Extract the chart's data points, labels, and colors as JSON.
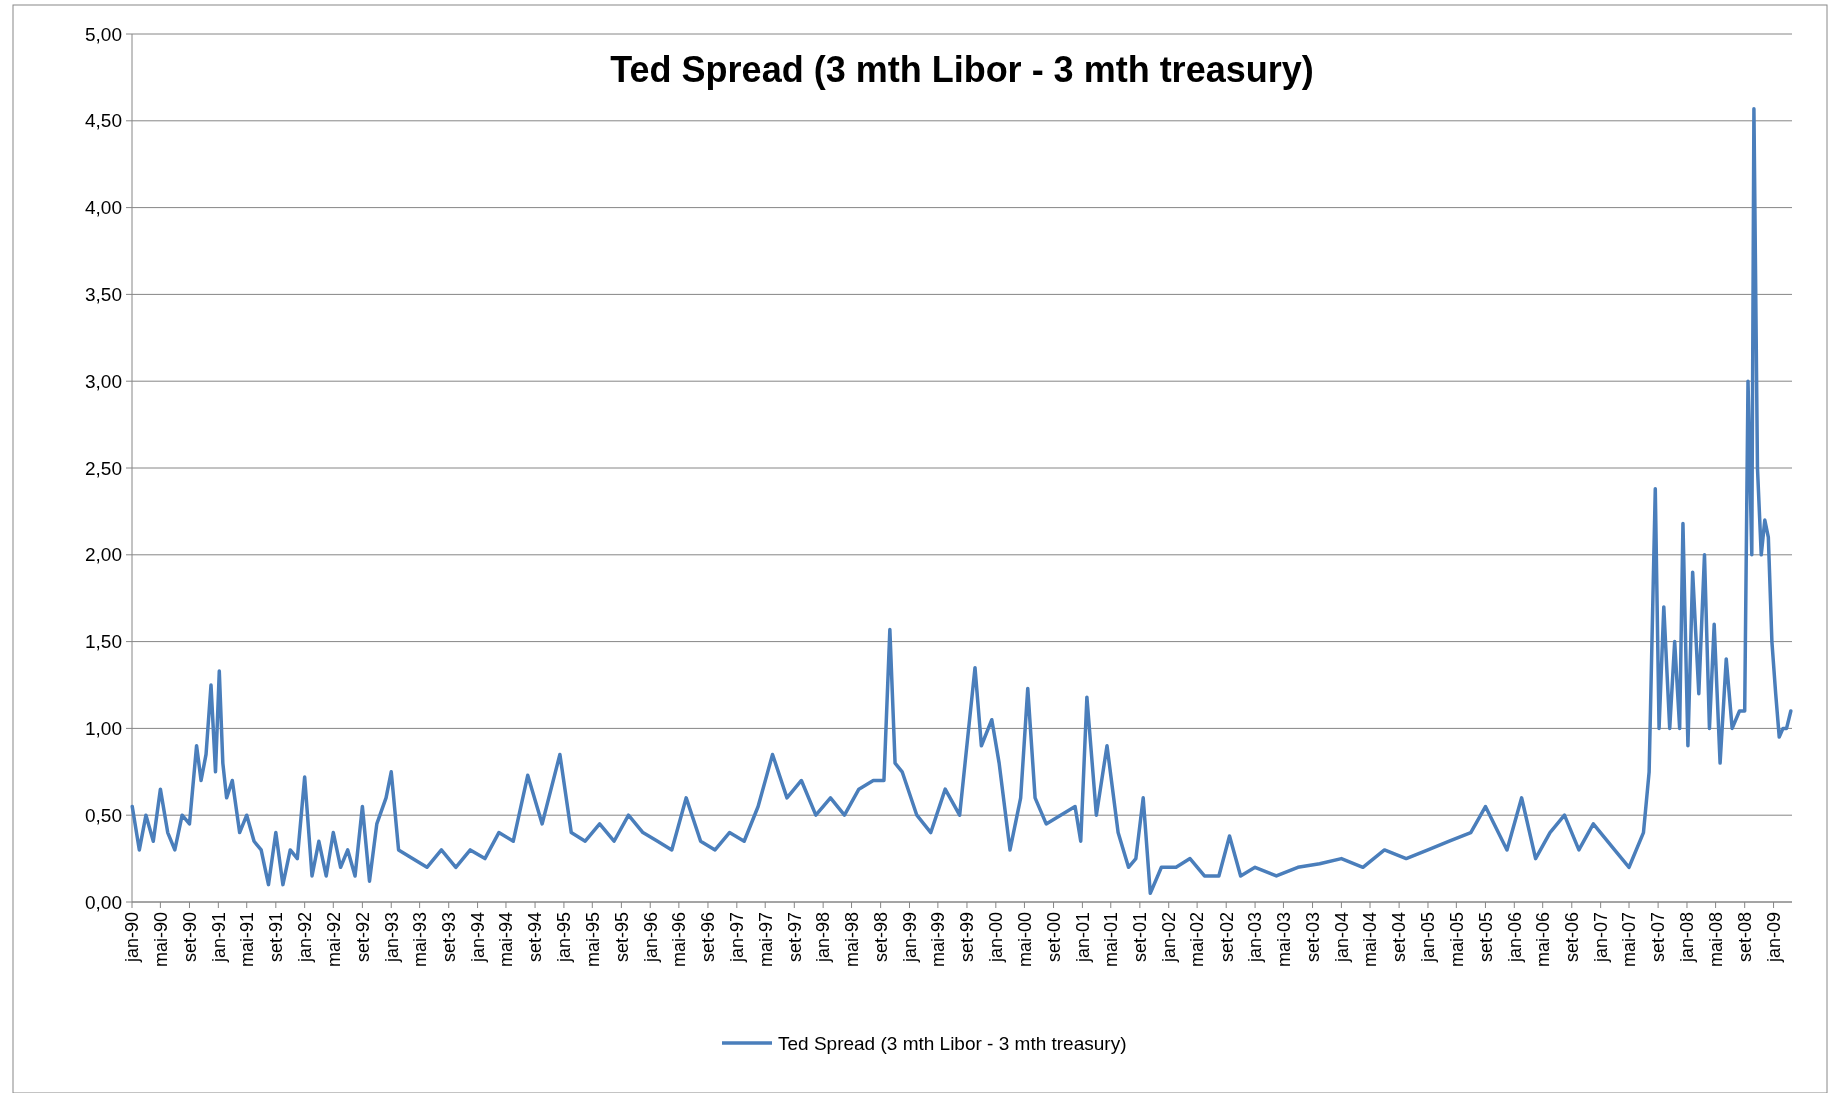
{
  "chart_data": {
    "type": "line",
    "title": "Ted Spread (3 mth Libor - 3 mth treasury)",
    "xlim": [
      "1990-01-01",
      "2009-03-20"
    ],
    "ylim": [
      0,
      5
    ],
    "yticks": [
      {
        "value": 0,
        "label": "0,00"
      },
      {
        "value": 0.5,
        "label": "0,50"
      },
      {
        "value": 1,
        "label": "1,00"
      },
      {
        "value": 1.5,
        "label": "1,50"
      },
      {
        "value": 2,
        "label": "2,00"
      },
      {
        "value": 2.5,
        "label": "2,50"
      },
      {
        "value": 3,
        "label": "3,00"
      },
      {
        "value": 3.5,
        "label": "3,50"
      },
      {
        "value": 4,
        "label": "4,00"
      },
      {
        "value": 4.5,
        "label": "4,50"
      },
      {
        "value": 5,
        "label": "5,00"
      }
    ],
    "xticks": [
      {
        "value": "1990-01-01",
        "label": "jan-90"
      },
      {
        "value": "1990-05-01",
        "label": "mai-90"
      },
      {
        "value": "1990-09-01",
        "label": "set-90"
      },
      {
        "value": "1991-01-01",
        "label": "jan-91"
      },
      {
        "value": "1991-05-01",
        "label": "mai-91"
      },
      {
        "value": "1991-09-01",
        "label": "set-91"
      },
      {
        "value": "1992-01-01",
        "label": "jan-92"
      },
      {
        "value": "1992-05-01",
        "label": "mai-92"
      },
      {
        "value": "1992-09-01",
        "label": "set-92"
      },
      {
        "value": "1993-01-01",
        "label": "jan-93"
      },
      {
        "value": "1993-05-01",
        "label": "mai-93"
      },
      {
        "value": "1993-09-01",
        "label": "set-93"
      },
      {
        "value": "1994-01-01",
        "label": "jan-94"
      },
      {
        "value": "1994-05-01",
        "label": "mai-94"
      },
      {
        "value": "1994-09-01",
        "label": "set-94"
      },
      {
        "value": "1995-01-01",
        "label": "jan-95"
      },
      {
        "value": "1995-05-01",
        "label": "mai-95"
      },
      {
        "value": "1995-09-01",
        "label": "set-95"
      },
      {
        "value": "1996-01-01",
        "label": "jan-96"
      },
      {
        "value": "1996-05-01",
        "label": "mai-96"
      },
      {
        "value": "1996-09-01",
        "label": "set-96"
      },
      {
        "value": "1997-01-01",
        "label": "jan-97"
      },
      {
        "value": "1997-05-01",
        "label": "mai-97"
      },
      {
        "value": "1997-09-01",
        "label": "set-97"
      },
      {
        "value": "1998-01-01",
        "label": "jan-98"
      },
      {
        "value": "1998-05-01",
        "label": "mai-98"
      },
      {
        "value": "1998-09-01",
        "label": "set-98"
      },
      {
        "value": "1999-01-01",
        "label": "jan-99"
      },
      {
        "value": "1999-05-01",
        "label": "mai-99"
      },
      {
        "value": "1999-09-01",
        "label": "set-99"
      },
      {
        "value": "2000-01-01",
        "label": "jan-00"
      },
      {
        "value": "2000-05-01",
        "label": "mai-00"
      },
      {
        "value": "2000-09-01",
        "label": "set-00"
      },
      {
        "value": "2001-01-01",
        "label": "jan-01"
      },
      {
        "value": "2001-05-01",
        "label": "mai-01"
      },
      {
        "value": "2001-09-01",
        "label": "set-01"
      },
      {
        "value": "2002-01-01",
        "label": "jan-02"
      },
      {
        "value": "2002-05-01",
        "label": "mai-02"
      },
      {
        "value": "2002-09-01",
        "label": "set-02"
      },
      {
        "value": "2003-01-01",
        "label": "jan-03"
      },
      {
        "value": "2003-05-01",
        "label": "mai-03"
      },
      {
        "value": "2003-09-01",
        "label": "set-03"
      },
      {
        "value": "2004-01-01",
        "label": "jan-04"
      },
      {
        "value": "2004-05-01",
        "label": "mai-04"
      },
      {
        "value": "2004-09-01",
        "label": "set-04"
      },
      {
        "value": "2005-01-01",
        "label": "jan-05"
      },
      {
        "value": "2005-05-01",
        "label": "mai-05"
      },
      {
        "value": "2005-09-01",
        "label": "set-05"
      },
      {
        "value": "2006-01-01",
        "label": "jan-06"
      },
      {
        "value": "2006-05-01",
        "label": "mai-06"
      },
      {
        "value": "2006-09-01",
        "label": "set-06"
      },
      {
        "value": "2007-01-01",
        "label": "jan-07"
      },
      {
        "value": "2007-05-01",
        "label": "mai-07"
      },
      {
        "value": "2007-09-01",
        "label": "set-07"
      },
      {
        "value": "2008-01-01",
        "label": "jan-08"
      },
      {
        "value": "2008-05-01",
        "label": "mai-08"
      },
      {
        "value": "2008-09-01",
        "label": "set-08"
      },
      {
        "value": "2009-01-01",
        "label": "jan-09"
      }
    ],
    "grid": "y",
    "legend": "bottom",
    "line_style": "solid",
    "series": [
      {
        "name": "Ted Spread (3 mth Libor - 3 mth treasury)",
        "color": "#4a7ebb",
        "x": [
          "1990-01-02",
          "1990-02-01",
          "1990-03-01",
          "1990-04-01",
          "1990-05-01",
          "1990-06-01",
          "1990-07-01",
          "1990-08-01",
          "1990-09-01",
          "1990-10-01",
          "1990-10-20",
          "1990-11-10",
          "1990-12-01",
          "1990-12-20",
          "1991-01-05",
          "1991-01-20",
          "1991-02-05",
          "1991-03-01",
          "1991-04-01",
          "1991-05-01",
          "1991-06-01",
          "1991-07-01",
          "1991-08-01",
          "1991-09-01",
          "1991-10-01",
          "1991-11-01",
          "1991-12-01",
          "1992-01-01",
          "1992-02-01",
          "1992-03-01",
          "1992-04-01",
          "1992-05-01",
          "1992-06-01",
          "1992-07-01",
          "1992-08-01",
          "1992-09-01",
          "1992-10-01",
          "1992-11-01",
          "1992-12-10",
          "1993-01-01",
          "1993-02-01",
          "1993-04-01",
          "1993-06-01",
          "1993-08-01",
          "1993-10-01",
          "1993-12-01",
          "1994-02-01",
          "1994-04-01",
          "1994-06-01",
          "1994-08-01",
          "1994-10-01",
          "1994-12-15",
          "1995-02-01",
          "1995-04-01",
          "1995-06-01",
          "1995-08-01",
          "1995-10-01",
          "1995-12-01",
          "1996-02-01",
          "1996-04-01",
          "1996-06-01",
          "1996-08-01",
          "1996-10-01",
          "1996-12-01",
          "1997-02-01",
          "1997-04-01",
          "1997-06-01",
          "1997-08-01",
          "1997-10-01",
          "1997-12-01",
          "1998-02-01",
          "1998-04-01",
          "1998-06-01",
          "1998-08-01",
          "1998-09-15",
          "1998-10-10",
          "1998-11-01",
          "1998-12-01",
          "1999-02-01",
          "1999-04-01",
          "1999-06-01",
          "1999-08-01",
          "1999-10-05",
          "1999-11-01",
          "1999-12-15",
          "2000-01-15",
          "2000-03-01",
          "2000-04-15",
          "2000-05-15",
          "2000-06-15",
          "2000-08-01",
          "2000-10-01",
          "2000-12-01",
          "2000-12-25",
          "2001-01-20",
          "2001-03-01",
          "2001-04-15",
          "2001-06-01",
          "2001-07-15",
          "2001-08-15",
          "2001-09-15",
          "2001-10-15",
          "2001-12-01",
          "2002-02-01",
          "2002-04-01",
          "2002-06-01",
          "2002-08-01",
          "2002-09-15",
          "2002-11-01",
          "2003-01-01",
          "2003-04-01",
          "2003-07-01",
          "2003-10-01",
          "2004-01-01",
          "2004-04-01",
          "2004-07-01",
          "2004-10-01",
          "2005-01-01",
          "2005-04-01",
          "2005-07-01",
          "2005-09-01",
          "2005-12-01",
          "2006-02-01",
          "2006-04-01",
          "2006-06-01",
          "2006-08-01",
          "2006-10-01",
          "2006-12-01",
          "2007-03-01",
          "2007-05-01",
          "2007-07-01",
          "2007-07-25",
          "2007-08-20",
          "2007-09-05",
          "2007-09-25",
          "2007-10-20",
          "2007-11-10",
          "2007-12-01",
          "2007-12-15",
          "2008-01-05",
          "2008-01-25",
          "2008-02-20",
          "2008-03-15",
          "2008-04-05",
          "2008-04-25",
          "2008-05-20",
          "2008-06-15",
          "2008-07-10",
          "2008-08-10",
          "2008-09-01",
          "2008-09-15",
          "2008-10-01",
          "2008-10-10",
          "2008-10-25",
          "2008-11-10",
          "2008-11-25",
          "2008-12-10",
          "2008-12-25",
          "2009-01-10",
          "2009-01-25",
          "2009-02-10",
          "2009-02-25",
          "2009-03-15"
        ],
        "values": [
          0.55,
          0.3,
          0.5,
          0.35,
          0.65,
          0.4,
          0.3,
          0.5,
          0.45,
          0.9,
          0.7,
          0.85,
          1.25,
          0.75,
          1.33,
          0.8,
          0.6,
          0.7,
          0.4,
          0.5,
          0.35,
          0.3,
          0.1,
          0.4,
          0.1,
          0.3,
          0.25,
          0.72,
          0.15,
          0.35,
          0.15,
          0.4,
          0.2,
          0.3,
          0.15,
          0.55,
          0.12,
          0.45,
          0.6,
          0.75,
          0.3,
          0.25,
          0.2,
          0.3,
          0.2,
          0.3,
          0.25,
          0.4,
          0.35,
          0.73,
          0.45,
          0.85,
          0.4,
          0.35,
          0.45,
          0.35,
          0.5,
          0.4,
          0.35,
          0.3,
          0.6,
          0.35,
          0.3,
          0.4,
          0.35,
          0.55,
          0.85,
          0.6,
          0.7,
          0.5,
          0.6,
          0.5,
          0.65,
          0.7,
          0.7,
          1.57,
          0.8,
          0.75,
          0.5,
          0.4,
          0.65,
          0.5,
          1.35,
          0.9,
          1.05,
          0.8,
          0.3,
          0.6,
          1.23,
          0.6,
          0.45,
          0.5,
          0.55,
          0.35,
          1.18,
          0.5,
          0.9,
          0.4,
          0.2,
          0.25,
          0.6,
          0.05,
          0.2,
          0.2,
          0.25,
          0.15,
          0.15,
          0.38,
          0.15,
          0.2,
          0.15,
          0.2,
          0.22,
          0.25,
          0.2,
          0.3,
          0.25,
          0.3,
          0.35,
          0.4,
          0.55,
          0.3,
          0.6,
          0.25,
          0.4,
          0.5,
          0.3,
          0.45,
          0.3,
          0.2,
          0.4,
          0.75,
          2.38,
          1.0,
          1.7,
          1.0,
          1.5,
          1.0,
          2.18,
          0.9,
          1.9,
          1.2,
          2.0,
          1.0,
          1.6,
          0.8,
          1.4,
          1.0,
          1.1,
          1.1,
          3.0,
          2.0,
          4.57,
          2.5,
          2.0,
          2.2,
          2.1,
          1.5,
          1.2,
          0.95,
          1.0,
          1.0,
          1.1
        ]
      }
    ]
  }
}
